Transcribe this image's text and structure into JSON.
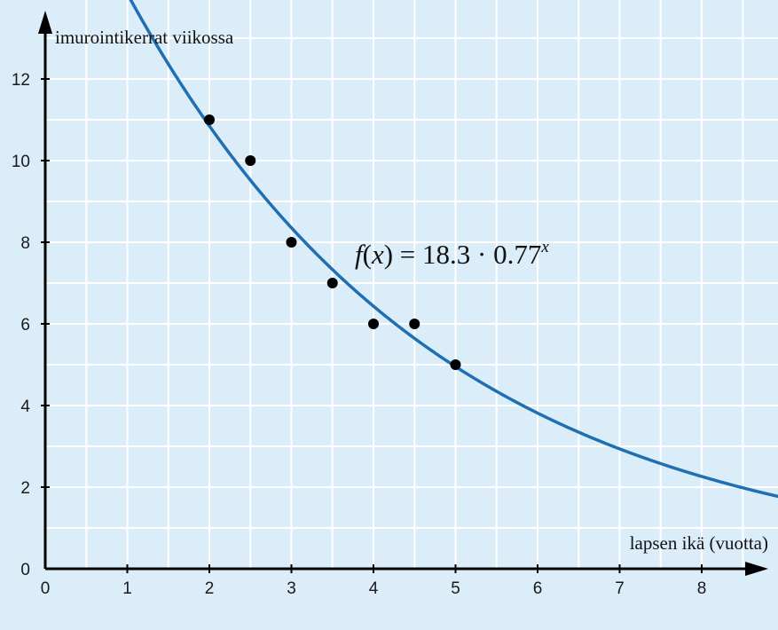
{
  "chart_data": {
    "type": "scatter",
    "xlabel": "lapsen ikä (vuotta)",
    "ylabel": "imurointikerrat viikossa",
    "xlim": [
      0,
      9
    ],
    "ylim": [
      0,
      13
    ],
    "x_ticks": [
      0,
      1,
      2,
      3,
      4,
      5,
      6,
      7,
      8
    ],
    "y_ticks": [
      0,
      2,
      4,
      6,
      8,
      10,
      12
    ],
    "grid": true,
    "grid_step": {
      "x": 0.5,
      "y": 1
    },
    "colors": {
      "background": "#dbedf9",
      "grid": "#ffffff",
      "curve": "#1f6fb2",
      "points": "#000000",
      "axis": "#000000"
    },
    "series": [
      {
        "type": "scatter",
        "x": [
          2,
          2.5,
          3,
          3.5,
          4,
          4.5,
          5
        ],
        "y": [
          11,
          10,
          8,
          7,
          6,
          6,
          5
        ]
      },
      {
        "type": "line",
        "model": {
          "kind": "exponential",
          "a": 18.3,
          "b": 0.77
        },
        "equation": {
          "prefix_italic": "f",
          "paren_open": "(",
          "var_italic": "x",
          "paren_close": ")",
          "rhs": " = 18.3 · 0.77",
          "exponent_italic": "x"
        }
      }
    ]
  }
}
